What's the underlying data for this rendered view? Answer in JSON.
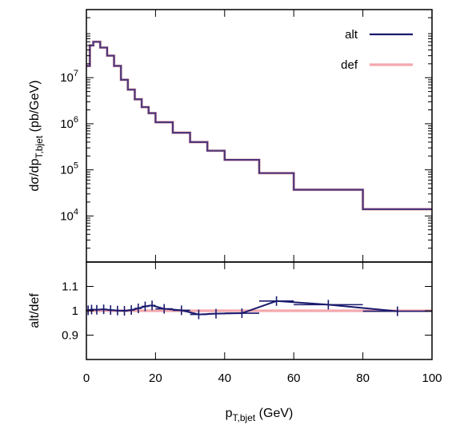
{
  "chart_data": [
    {
      "type": "line",
      "panel": "main",
      "ylabel_main": "dσ/dp",
      "ylabel_sub": "T,bjet",
      "ylabel_unit": " (pb/GeV)",
      "yscale": "log",
      "ylim": [
        1000,
        300000000
      ],
      "xlim": [
        0,
        100
      ],
      "yticks": [
        {
          "value": 10000,
          "base": "10",
          "exp": "4"
        },
        {
          "value": 100000,
          "base": "10",
          "exp": "5"
        },
        {
          "value": 1000000,
          "base": "10",
          "exp": "6"
        },
        {
          "value": 10000000,
          "base": "10",
          "exp": "7"
        }
      ],
      "legend": {
        "position": "top-right"
      },
      "series": [
        {
          "name": "alt",
          "color": "#1a1a6e",
          "edges": [
            0,
            1,
            2,
            4,
            6,
            8,
            10,
            12,
            14,
            16,
            18,
            20,
            25,
            30,
            35,
            40,
            50,
            60,
            80,
            100
          ],
          "values": [
            18000000,
            50000000,
            60000000,
            45000000,
            30000000,
            18000000,
            9000000,
            5500000,
            3400000,
            2300000,
            1700000,
            1080000,
            640000,
            400000,
            260000,
            165000,
            85000,
            37000,
            14000
          ]
        },
        {
          "name": "def",
          "color": "#f4a8ae",
          "edges": [
            0,
            1,
            2,
            4,
            6,
            8,
            10,
            12,
            14,
            16,
            18,
            20,
            25,
            30,
            35,
            40,
            50,
            60,
            80,
            100
          ],
          "values": [
            18000000,
            50000000,
            60000000,
            45000000,
            30000000,
            18000000,
            9000000,
            5500000,
            3400000,
            2300000,
            1700000,
            1080000,
            640000,
            400000,
            260000,
            165000,
            85000,
            37000,
            14000
          ]
        }
      ]
    },
    {
      "type": "line",
      "panel": "ratio",
      "ylabel": "alt/def",
      "xlabel_main": "p",
      "xlabel_sub": "T,bjet",
      "xlabel_unit": " (GeV)",
      "xlim": [
        0,
        100
      ],
      "ylim": [
        0.8,
        1.2
      ],
      "yticks": [
        "0.9",
        "1",
        "1.1"
      ],
      "xticks": [
        "0",
        "20",
        "40",
        "60",
        "80",
        "100"
      ],
      "reference": {
        "name": "def",
        "value": 1.0,
        "color": "#f4a8ae"
      },
      "series": [
        {
          "name": "alt",
          "color": "#1a1a6e",
          "x": [
            0.5,
            1.5,
            3,
            5,
            7,
            9,
            11,
            13,
            15,
            17,
            19,
            22.5,
            27.5,
            32.5,
            37.5,
            45,
            55,
            70,
            90
          ],
          "y": [
            1.002,
            1.005,
            1.004,
            1.006,
            1.003,
            1.001,
            1.0,
            1.003,
            1.01,
            1.018,
            1.022,
            1.008,
            1.002,
            0.985,
            0.988,
            0.99,
            1.04,
            1.025,
            0.998
          ],
          "xerr": [
            0.5,
            0.5,
            1,
            1,
            1,
            1,
            1,
            1,
            1,
            1,
            1,
            2.5,
            2.5,
            2.5,
            2.5,
            5,
            5,
            10,
            10
          ]
        }
      ]
    }
  ]
}
